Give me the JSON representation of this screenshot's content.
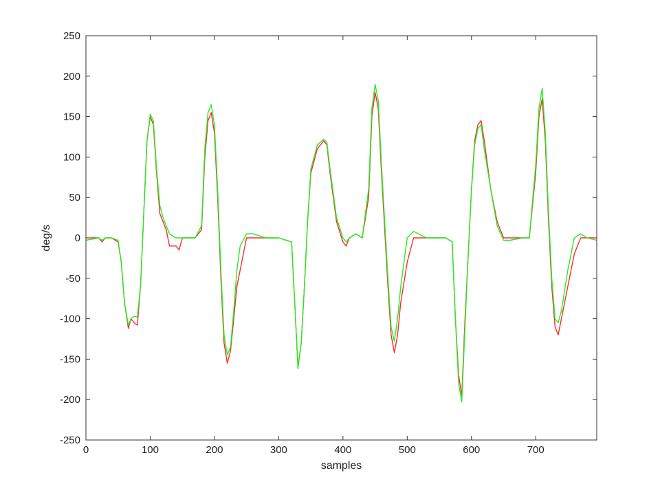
{
  "chart_data": {
    "type": "line",
    "title": "",
    "xlabel": "samples",
    "ylabel": "deg/s",
    "xlim": [
      0,
      795
    ],
    "ylim": [
      -250,
      250
    ],
    "xticks": [
      0,
      100,
      200,
      300,
      400,
      500,
      600,
      700
    ],
    "yticks": [
      250,
      200,
      150,
      100,
      50,
      0,
      -50,
      -100,
      -150,
      -200,
      -250
    ],
    "grid": false,
    "legend": "none",
    "series": [
      {
        "color": "#ff2a2a",
        "points": [
          [
            0,
            0
          ],
          [
            20,
            0
          ],
          [
            25,
            -5
          ],
          [
            30,
            0
          ],
          [
            40,
            0
          ],
          [
            50,
            -5
          ],
          [
            55,
            -30
          ],
          [
            60,
            -80
          ],
          [
            66,
            -112
          ],
          [
            70,
            -100
          ],
          [
            75,
            -105
          ],
          [
            80,
            -108
          ],
          [
            85,
            -60
          ],
          [
            90,
            30
          ],
          [
            95,
            120
          ],
          [
            100,
            150
          ],
          [
            105,
            140
          ],
          [
            110,
            80
          ],
          [
            115,
            30
          ],
          [
            120,
            20
          ],
          [
            125,
            10
          ],
          [
            130,
            -10
          ],
          [
            140,
            -10
          ],
          [
            145,
            -15
          ],
          [
            150,
            0
          ],
          [
            170,
            0
          ],
          [
            180,
            10
          ],
          [
            185,
            100
          ],
          [
            190,
            145
          ],
          [
            195,
            155
          ],
          [
            200,
            130
          ],
          [
            205,
            50
          ],
          [
            210,
            -50
          ],
          [
            215,
            -130
          ],
          [
            220,
            -155
          ],
          [
            225,
            -140
          ],
          [
            230,
            -100
          ],
          [
            235,
            -60
          ],
          [
            240,
            -40
          ],
          [
            250,
            0
          ],
          [
            260,
            0
          ],
          [
            280,
            0
          ],
          [
            300,
            0
          ],
          [
            320,
            -5
          ],
          [
            325,
            -80
          ],
          [
            330,
            -160
          ],
          [
            335,
            -130
          ],
          [
            340,
            -60
          ],
          [
            345,
            20
          ],
          [
            350,
            80
          ],
          [
            360,
            110
          ],
          [
            370,
            120
          ],
          [
            375,
            115
          ],
          [
            380,
            80
          ],
          [
            390,
            20
          ],
          [
            400,
            -5
          ],
          [
            405,
            -10
          ],
          [
            410,
            0
          ],
          [
            420,
            5
          ],
          [
            430,
            0
          ],
          [
            440,
            50
          ],
          [
            445,
            150
          ],
          [
            450,
            180
          ],
          [
            455,
            160
          ],
          [
            460,
            80
          ],
          [
            465,
            10
          ],
          [
            470,
            -60
          ],
          [
            475,
            -120
          ],
          [
            480,
            -142
          ],
          [
            485,
            -120
          ],
          [
            490,
            -80
          ],
          [
            500,
            -30
          ],
          [
            510,
            0
          ],
          [
            530,
            0
          ],
          [
            560,
            0
          ],
          [
            570,
            -5
          ],
          [
            575,
            -100
          ],
          [
            580,
            -170
          ],
          [
            585,
            -195
          ],
          [
            590,
            -100
          ],
          [
            595,
            -20
          ],
          [
            600,
            60
          ],
          [
            605,
            120
          ],
          [
            610,
            140
          ],
          [
            615,
            145
          ],
          [
            620,
            120
          ],
          [
            625,
            90
          ],
          [
            630,
            60
          ],
          [
            640,
            20
          ],
          [
            650,
            0
          ],
          [
            660,
            0
          ],
          [
            680,
            0
          ],
          [
            690,
            0
          ],
          [
            700,
            80
          ],
          [
            705,
            150
          ],
          [
            710,
            172
          ],
          [
            715,
            120
          ],
          [
            720,
            20
          ],
          [
            725,
            -60
          ],
          [
            730,
            -110
          ],
          [
            735,
            -120
          ],
          [
            740,
            -100
          ],
          [
            750,
            -60
          ],
          [
            760,
            -20
          ],
          [
            770,
            0
          ],
          [
            780,
            0
          ],
          [
            795,
            0
          ]
        ]
      },
      {
        "color": "#22ee22",
        "points": [
          [
            0,
            -3
          ],
          [
            20,
            0
          ],
          [
            25,
            -3
          ],
          [
            30,
            0
          ],
          [
            40,
            0
          ],
          [
            50,
            -3
          ],
          [
            55,
            -30
          ],
          [
            60,
            -80
          ],
          [
            66,
            -108
          ],
          [
            70,
            -100
          ],
          [
            75,
            -97
          ],
          [
            80,
            -98
          ],
          [
            85,
            -60
          ],
          [
            90,
            30
          ],
          [
            95,
            120
          ],
          [
            100,
            153
          ],
          [
            105,
            145
          ],
          [
            110,
            85
          ],
          [
            115,
            40
          ],
          [
            120,
            25
          ],
          [
            125,
            15
          ],
          [
            130,
            5
          ],
          [
            140,
            0
          ],
          [
            145,
            0
          ],
          [
            150,
            0
          ],
          [
            170,
            0
          ],
          [
            180,
            15
          ],
          [
            185,
            110
          ],
          [
            190,
            155
          ],
          [
            195,
            165
          ],
          [
            200,
            140
          ],
          [
            205,
            60
          ],
          [
            210,
            -40
          ],
          [
            215,
            -120
          ],
          [
            220,
            -145
          ],
          [
            225,
            -135
          ],
          [
            230,
            -90
          ],
          [
            235,
            -40
          ],
          [
            240,
            -10
          ],
          [
            250,
            5
          ],
          [
            260,
            5
          ],
          [
            280,
            0
          ],
          [
            300,
            0
          ],
          [
            320,
            -5
          ],
          [
            325,
            -80
          ],
          [
            330,
            -162
          ],
          [
            335,
            -130
          ],
          [
            340,
            -60
          ],
          [
            345,
            20
          ],
          [
            350,
            85
          ],
          [
            360,
            115
          ],
          [
            370,
            122
          ],
          [
            375,
            118
          ],
          [
            380,
            85
          ],
          [
            390,
            25
          ],
          [
            400,
            0
          ],
          [
            405,
            -5
          ],
          [
            410,
            0
          ],
          [
            420,
            5
          ],
          [
            430,
            0
          ],
          [
            440,
            60
          ],
          [
            445,
            160
          ],
          [
            450,
            190
          ],
          [
            455,
            170
          ],
          [
            460,
            90
          ],
          [
            465,
            20
          ],
          [
            470,
            -50
          ],
          [
            475,
            -110
          ],
          [
            480,
            -128
          ],
          [
            485,
            -100
          ],
          [
            490,
            -60
          ],
          [
            500,
            0
          ],
          [
            510,
            8
          ],
          [
            530,
            0
          ],
          [
            560,
            0
          ],
          [
            570,
            -5
          ],
          [
            575,
            -100
          ],
          [
            580,
            -180
          ],
          [
            585,
            -203
          ],
          [
            590,
            -110
          ],
          [
            595,
            -20
          ],
          [
            600,
            60
          ],
          [
            605,
            115
          ],
          [
            610,
            135
          ],
          [
            615,
            140
          ],
          [
            620,
            110
          ],
          [
            625,
            85
          ],
          [
            630,
            60
          ],
          [
            640,
            15
          ],
          [
            650,
            -3
          ],
          [
            660,
            -3
          ],
          [
            680,
            0
          ],
          [
            690,
            0
          ],
          [
            700,
            90
          ],
          [
            705,
            160
          ],
          [
            710,
            185
          ],
          [
            715,
            130
          ],
          [
            720,
            30
          ],
          [
            725,
            -50
          ],
          [
            730,
            -100
          ],
          [
            735,
            -105
          ],
          [
            740,
            -90
          ],
          [
            750,
            -40
          ],
          [
            760,
            0
          ],
          [
            770,
            5
          ],
          [
            780,
            0
          ],
          [
            795,
            -3
          ]
        ]
      }
    ]
  }
}
